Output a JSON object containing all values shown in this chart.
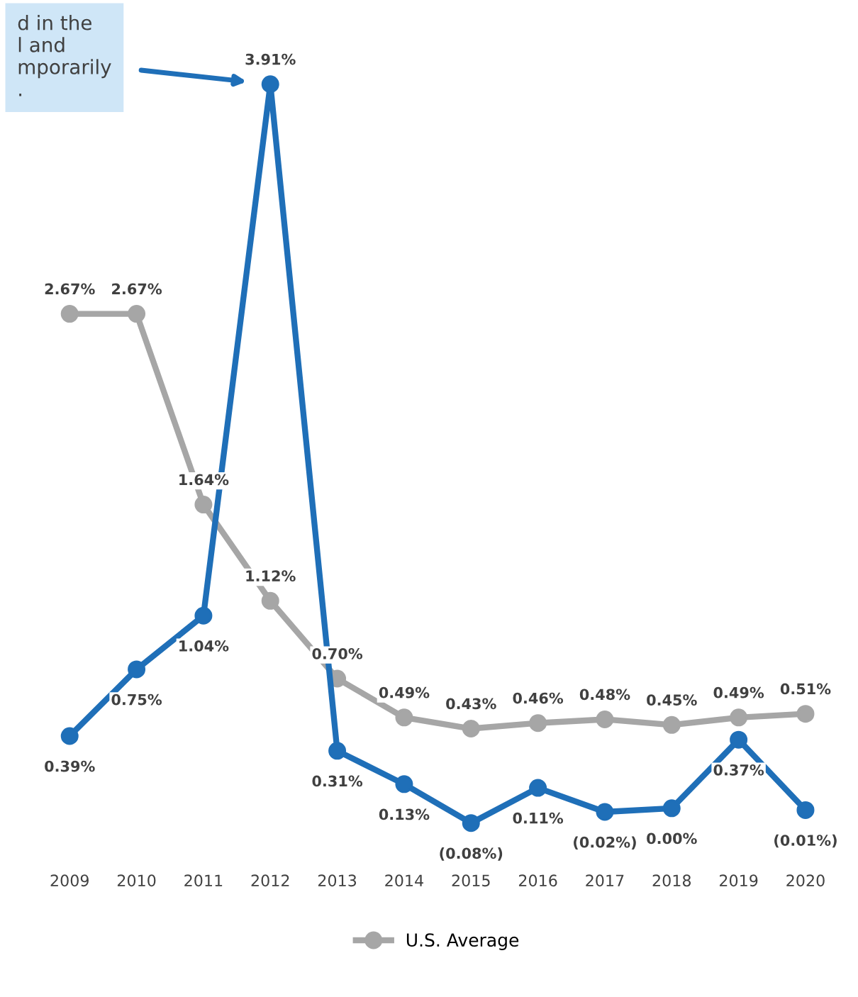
{
  "chart_data": {
    "type": "line",
    "categories": [
      "2009",
      "2010",
      "2011",
      "2012",
      "2013",
      "2014",
      "2015",
      "2016",
      "2017",
      "2018",
      "2019",
      "2020"
    ],
    "series": [
      {
        "color": "#1f6fb8",
        "values": [
          0.39,
          0.75,
          1.04,
          3.91,
          0.31,
          0.13,
          -0.08,
          0.11,
          -0.02,
          0.0,
          0.37,
          -0.01
        ],
        "value_labels": [
          "0.39%",
          "0.75%",
          "1.04%",
          "3.91%",
          "0.31%",
          "0.13%",
          "(0.08%)",
          "0.11%",
          "(0.02%)",
          "0.00%",
          "0.37%",
          "(0.01%)"
        ]
      },
      {
        "name": "U.S. Average",
        "color": "#a6a6a6",
        "values": [
          2.67,
          2.67,
          1.64,
          1.12,
          0.7,
          0.49,
          0.43,
          0.46,
          0.48,
          0.45,
          0.49,
          0.51
        ],
        "value_labels": [
          "2.67%",
          "2.67%",
          "1.64%",
          "1.12%",
          "0.70%",
          "0.49%",
          "0.43%",
          "0.46%",
          "0.48%",
          "0.45%",
          "0.49%",
          "0.51%"
        ]
      }
    ],
    "annotations": [
      "d in the\nl and\nmporarily\n."
    ],
    "marker": "circle",
    "legend": "bottom",
    "grid": false
  }
}
